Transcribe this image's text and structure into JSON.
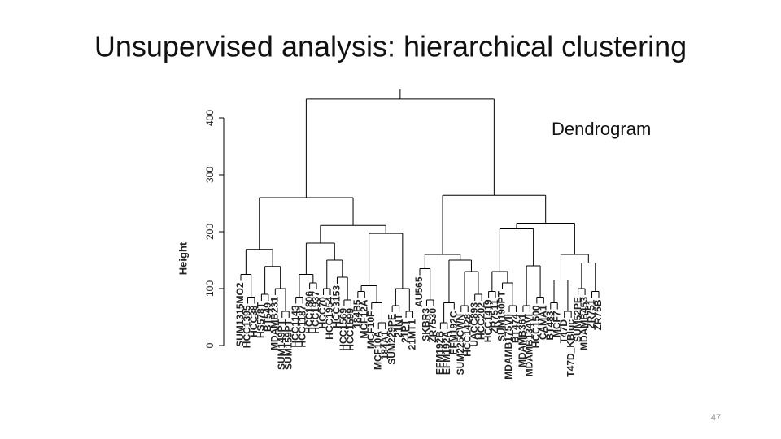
{
  "title": "Unsupervised analysis: hierarchical clustering",
  "annotation": "Dendrogram",
  "page_number": "47",
  "chart_data": {
    "type": "dendrogram",
    "ylabel": "Height",
    "ylim": [
      0,
      400
    ],
    "yticks": [
      0,
      100,
      200,
      300,
      400
    ],
    "color": "#000000",
    "tree": {
      "height": 433,
      "children": [
        {
          "height": 260,
          "children": [
            {
              "height": 169,
              "children": [
                {
                  "height": 125,
                  "children": [
                    "SUM1315MO2",
                    {
                      "height": 85,
                      "children": [
                        "HCC1395",
                        "HCC38"
                      ]
                    }
                  ]
                },
                {
                  "height": 139,
                  "children": [
                    {
                      "height": 90,
                      "children": [
                        "HS578T",
                        "BT549"
                      ]
                    },
                    {
                      "height": 100,
                      "children": [
                        "MDAMB231",
                        {
                          "height": 60,
                          "children": [
                            "SUM149PT",
                            "SUM159PT"
                          ]
                        }
                      ]
                    }
                  ]
                }
              ]
            },
            {
              "height": 211,
              "children": [
                {
                  "height": 180,
                  "children": [
                    {
                      "height": 125,
                      "children": [
                        {
                          "height": 85,
                          "children": [
                            "HCC1143",
                            "HCC1187"
                          ]
                        },
                        {
                          "height": 110,
                          "children": [
                            "HCC1806",
                            "HCC1937"
                          ]
                        }
                      ]
                    },
                    {
                      "height": 150,
                      "children": [
                        {
                          "height": 100,
                          "children": [
                            "HCC70",
                            "HCC1954"
                          ]
                        },
                        {
                          "height": 120,
                          "children": [
                            "HCC3153",
                            {
                              "height": 80,
                              "children": [
                                "HCC1569",
                                "HCC1599"
                              ]
                            }
                          ]
                        }
                      ]
                    }
                  ]
                },
                {
                  "height": 197,
                  "children": [
                    {
                      "height": 105,
                      "children": [
                        {
                          "height": 95,
                          "children": [
                            "184B5",
                            "MCF12A"
                          ]
                        },
                        {
                          "height": 75,
                          "children": [
                            "MCF10F",
                            {
                              "height": 40,
                              "children": [
                                "MCF10A",
                                "184A1"
                              ]
                            }
                          ]
                        }
                      ]
                    },
                    {
                      "height": 100,
                      "children": [
                        {
                          "height": 70,
                          "children": [
                            "SUM229PE",
                            "21NT"
                          ]
                        },
                        {
                          "height": 60,
                          "children": [
                            "21PT",
                            "21MT1"
                          ]
                        }
                      ]
                    }
                  ]
                }
              ]
            }
          ]
        },
        {
          "height": 264,
          "children": [
            {
              "height": 160,
              "children": [
                {
                  "height": 135,
                  "children": [
                    "AU565",
                    {
                      "height": 80,
                      "children": [
                        "SKBR3",
                        "ZR7530"
                      ]
                    }
                  ]
                },
                {
                  "height": 150,
                  "children": [
                    {
                      "height": 75,
                      "children": [
                        {
                          "height": 40,
                          "children": [
                            "EFM192B",
                            "EFM192A"
                          ]
                        },
                        "EFM192C"
                      ]
                    },
                    {
                      "height": 130,
                      "children": [
                        {
                          "height": 70,
                          "children": [
                            "SUM225CWN",
                            "HCC1428"
                          ]
                        },
                        {
                          "height": 90,
                          "children": [
                            "UACC893",
                            "HCC202"
                          ]
                        }
                      ]
                    }
                  ]
                }
              ]
            },
            {
              "height": 215,
              "children": [
                {
                  "height": 205,
                  "children": [
                    {
                      "height": 130,
                      "children": [
                        {
                          "height": 95,
                          "children": [
                            "HCC1419",
                            "ZR7511"
                          ]
                        },
                        {
                          "height": 110,
                          "children": [
                            "SUM190PT",
                            {
                              "height": 70,
                              "children": [
                                "MDAMB175VII",
                                "BT474"
                              ]
                            }
                          ]
                        }
                      ]
                    },
                    {
                      "height": 140,
                      "children": [
                        {
                          "height": 70,
                          "children": [
                            "MDAMB361",
                            "MDAMB134VI"
                          ]
                        },
                        {
                          "height": 85,
                          "children": [
                            "HCC1500",
                            "CAMA1"
                          ]
                        }
                      ]
                    }
                  ]
                },
                {
                  "height": 160,
                  "children": [
                    {
                      "height": 115,
                      "children": [
                        {
                          "height": 75,
                          "children": [
                            "BT483",
                            "MCF7"
                          ]
                        },
                        {
                          "height": 60,
                          "children": [
                            "T47D",
                            "T47D_KBluc"
                          ]
                        }
                      ]
                    },
                    {
                      "height": 145,
                      "children": [
                        {
                          "height": 100,
                          "children": [
                            "SUM52PE",
                            "MDAMB453"
                          ]
                        },
                        {
                          "height": 95,
                          "children": [
                            "ZR751",
                            "ZR75B"
                          ]
                        }
                      ]
                    }
                  ]
                }
              ]
            }
          ]
        }
      ]
    }
  }
}
